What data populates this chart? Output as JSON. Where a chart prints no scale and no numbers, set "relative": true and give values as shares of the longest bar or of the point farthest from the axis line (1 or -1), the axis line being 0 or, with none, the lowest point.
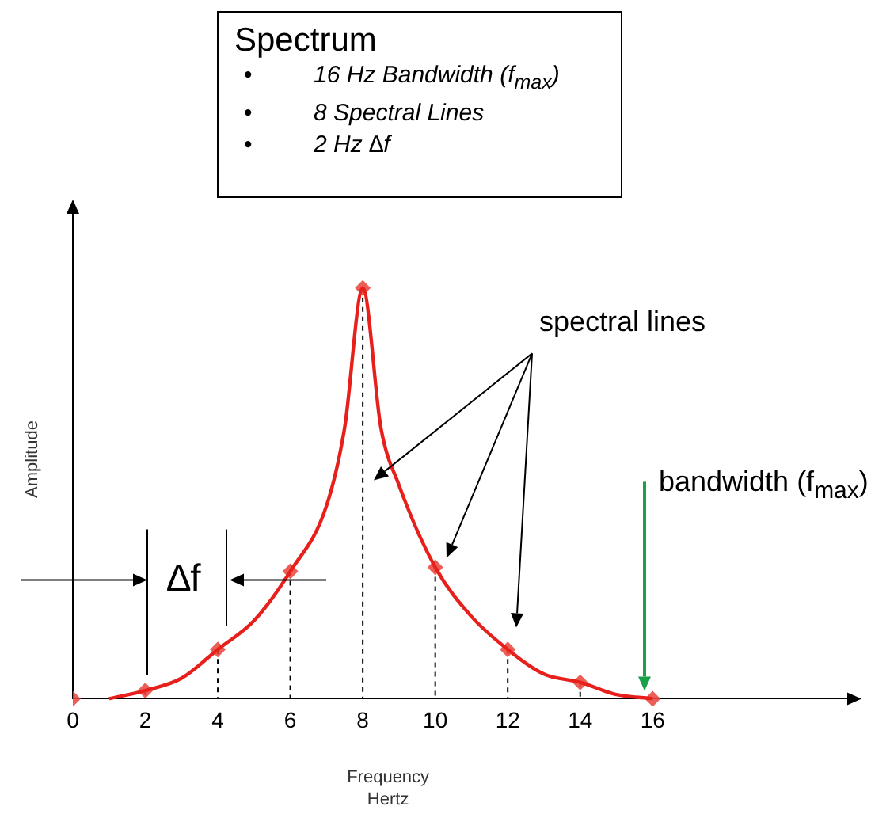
{
  "chart_data": {
    "type": "line",
    "title": "Spectrum",
    "xlabel": "Frequency\nHertz",
    "ylabel": "Amplitude",
    "relative": true,
    "x": [
      0,
      2,
      4,
      6,
      8,
      10,
      12,
      14,
      16
    ],
    "series": [
      {
        "type": "line",
        "color": "#e8201c",
        "marker": "none",
        "x": [
          1,
          2,
          3,
          4,
          5,
          6,
          7,
          7.5,
          8,
          8.5,
          9,
          10,
          11,
          12,
          13,
          14,
          15,
          16
        ],
        "values": [
          0,
          0.02,
          0.05,
          0.12,
          0.19,
          0.31,
          0.47,
          0.66,
          1,
          0.66,
          0.52,
          0.32,
          0.2,
          0.12,
          0.06,
          0.04,
          0.01,
          0
        ]
      },
      {
        "type": "lollipop",
        "color": "#e8463c",
        "line_style": "dashed",
        "values": [
          0,
          0.02,
          0.12,
          0.31,
          1,
          0.32,
          0.12,
          0.04,
          0
        ]
      }
    ],
    "xlim": [
      0,
      21.5
    ],
    "xticks": [
      0,
      2,
      4,
      6,
      8,
      10,
      12,
      14,
      16
    ],
    "marker": "diamond",
    "annotations": [
      "• 16 Hz Bandwidth (f$_{max}$)",
      "• 8 Spectral Lines",
      "• 2 Hz ∆f",
      "spectral lines",
      "bandwidth (f$_{max}$)",
      "∆f"
    ]
  }
}
